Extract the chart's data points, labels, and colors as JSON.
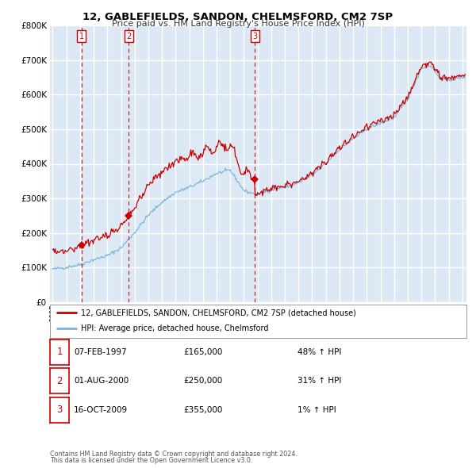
{
  "title": "12, GABLEFIELDS, SANDON, CHELMSFORD, CM2 7SP",
  "subtitle": "Price paid vs. HM Land Registry's House Price Index (HPI)",
  "legend_line1": "12, GABLEFIELDS, SANDON, CHELMSFORD, CM2 7SP (detached house)",
  "legend_line2": "HPI: Average price, detached house, Chelmsford",
  "sale_dates_num": [
    1997.1,
    2000.58,
    2009.79
  ],
  "sale_prices": [
    165000,
    250000,
    355000
  ],
  "sale_labels": [
    "1",
    "2",
    "3"
  ],
  "vline_dates": [
    1997.1,
    2000.58,
    2009.79
  ],
  "table_rows": [
    {
      "num": "1",
      "date": "07-FEB-1997",
      "price": "£165,000",
      "hpi": "48% ↑ HPI"
    },
    {
      "num": "2",
      "date": "01-AUG-2000",
      "price": "£250,000",
      "hpi": "31% ↑ HPI"
    },
    {
      "num": "3",
      "date": "16-OCT-2009",
      "price": "£355,000",
      "hpi": "1% ↑ HPI"
    }
  ],
  "footnote1": "Contains HM Land Registry data © Crown copyright and database right 2024.",
  "footnote2": "This data is licensed under the Open Government Licence v3.0.",
  "ylim": [
    0,
    800000
  ],
  "xlim_start": 1994.8,
  "xlim_end": 2025.3,
  "background_color": "#dce9f5",
  "grid_color": "#ffffff",
  "hpi_line_color": "#7ab4d8",
  "price_line_color": "#cc0000",
  "sale_dot_color": "#cc0000",
  "vline_color": "#cc0000",
  "fig_bg": "#f5f5f5"
}
